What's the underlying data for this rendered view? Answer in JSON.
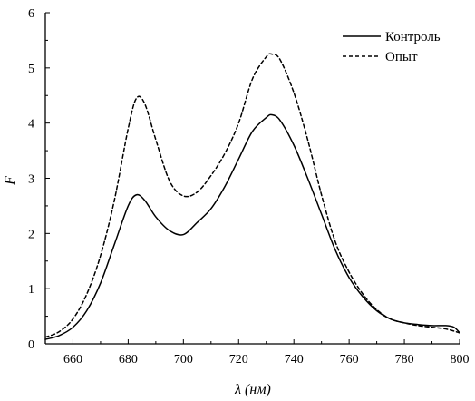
{
  "chart_data": {
    "type": "line",
    "xlabel": "λ (нм)",
    "ylabel": "F",
    "xlim": [
      650,
      800
    ],
    "ylim": [
      0,
      6
    ],
    "xticks": [
      660,
      680,
      700,
      720,
      740,
      760,
      780,
      800
    ],
    "yticks": [
      0,
      1,
      2,
      3,
      4,
      5,
      6
    ],
    "grid": false,
    "legend_position": "top-right",
    "series": [
      {
        "name": "Контроль",
        "style": "solid",
        "color": "#000000",
        "x": [
          650,
          655,
          660,
          665,
          670,
          675,
          680,
          683,
          686,
          690,
          695,
          700,
          705,
          710,
          715,
          720,
          725,
          730,
          732,
          735,
          740,
          745,
          750,
          755,
          760,
          765,
          770,
          775,
          780,
          785,
          790,
          795,
          798,
          800
        ],
        "y": [
          0.08,
          0.15,
          0.3,
          0.6,
          1.1,
          1.8,
          2.5,
          2.7,
          2.6,
          2.3,
          2.05,
          1.98,
          2.2,
          2.45,
          2.85,
          3.35,
          3.85,
          4.1,
          4.15,
          4.05,
          3.6,
          3.0,
          2.35,
          1.7,
          1.2,
          0.85,
          0.6,
          0.45,
          0.38,
          0.35,
          0.33,
          0.33,
          0.3,
          0.2
        ]
      },
      {
        "name": "Опыт",
        "style": "dashed",
        "color": "#000000",
        "x": [
          650,
          655,
          660,
          665,
          670,
          675,
          680,
          683,
          686,
          690,
          695,
          700,
          705,
          710,
          715,
          720,
          725,
          730,
          732,
          735,
          740,
          745,
          750,
          755,
          760,
          765,
          770,
          775,
          780,
          785,
          790,
          795,
          800
        ],
        "y": [
          0.12,
          0.22,
          0.45,
          0.9,
          1.6,
          2.6,
          3.9,
          4.45,
          4.35,
          3.7,
          2.95,
          2.68,
          2.75,
          3.05,
          3.45,
          4.0,
          4.8,
          5.2,
          5.25,
          5.15,
          4.55,
          3.7,
          2.7,
          1.85,
          1.3,
          0.9,
          0.62,
          0.45,
          0.38,
          0.33,
          0.3,
          0.27,
          0.2
        ]
      }
    ]
  }
}
